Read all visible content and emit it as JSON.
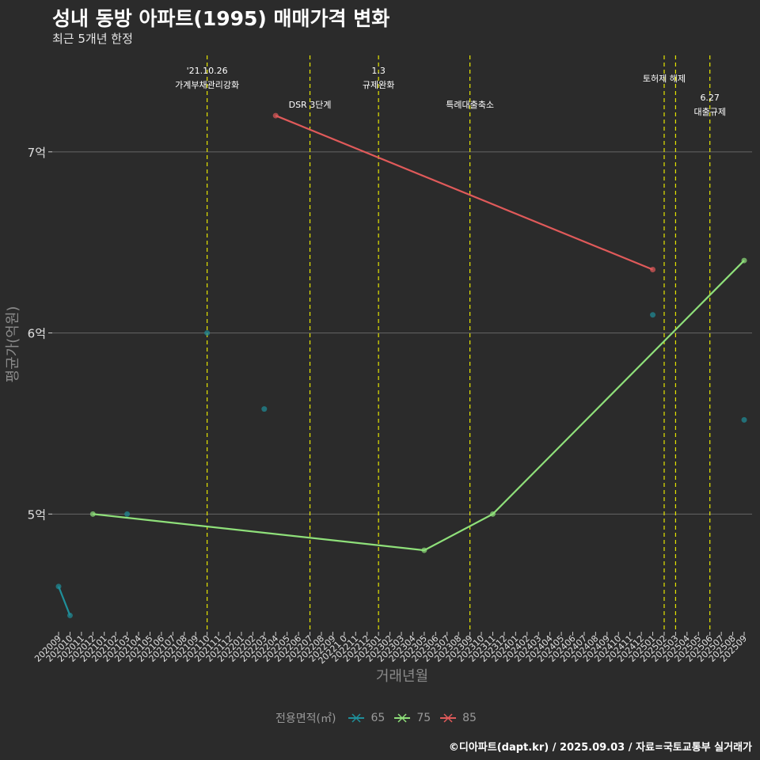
{
  "title": "성내 동방 아파트(1995) 매매가격 변화",
  "subtitle": "최근 5개년 한정",
  "caption": "©디아파트(dapt.kr) / 2025.09.03 / 자료=국토교통부 실거래가",
  "chart_data": {
    "type": "line",
    "title": "성내 동방 아파트(1995) 매매가격 변화",
    "xlabel": "거래년월",
    "ylabel": "평균가(억원)",
    "ylim": [
      4.35,
      7.55
    ],
    "yticks": [
      5,
      6,
      7
    ],
    "ytick_labels": [
      "5억",
      "6억",
      "7억"
    ],
    "categories": [
      "202009",
      "202010",
      "202011",
      "202012",
      "202101",
      "202102",
      "202103",
      "202104",
      "202105",
      "202106",
      "202107",
      "202108",
      "202109",
      "202110",
      "202111",
      "202112",
      "202201",
      "202202",
      "202203",
      "202204",
      "202205",
      "202206",
      "202207",
      "202208",
      "202209",
      "202210",
      "202211",
      "202212",
      "202301",
      "202302",
      "202303",
      "202304",
      "202305",
      "202306",
      "202307",
      "202308",
      "202309",
      "202310",
      "202311",
      "202312",
      "202401",
      "202402",
      "202403",
      "202404",
      "202405",
      "202406",
      "202407",
      "202408",
      "202409",
      "202410",
      "202411",
      "202412",
      "202501",
      "202502",
      "202503",
      "202504",
      "202505",
      "202506",
      "202507",
      "202508",
      "202509"
    ],
    "x_tick_labels": [
      "202009",
      "202010",
      "202011",
      "202012",
      "202101",
      "202102",
      "202103",
      "202104",
      "202105",
      "202106",
      "202107",
      "202108",
      "202109",
      "202110",
      "202111",
      "202112",
      "202201",
      "202202",
      "202203",
      "202204",
      "202205",
      "202206",
      "202207",
      "202208",
      "202209",
      "20221 0",
      "202211",
      "202212",
      "202301",
      "202302",
      "202303",
      "202304",
      "202305",
      "202306",
      "202307",
      "202308",
      "202309",
      "202310",
      "202311",
      "202312",
      "202401",
      "202402",
      "202403",
      "202404",
      "202405",
      "202406",
      "202407",
      "202408",
      "202409",
      "202410",
      "202411",
      "202412",
      "202501",
      "202502",
      "202503",
      "202504",
      "202505",
      "202506",
      "202507",
      "202508",
      "202509"
    ],
    "series": [
      {
        "name": "65",
        "color": "#1f8f9a",
        "line": [
          {
            "x": "202009",
            "y": 4.6
          },
          {
            "x": "202010",
            "y": 4.44
          }
        ],
        "points": [
          {
            "x": "202009",
            "y": 4.6
          },
          {
            "x": "202010",
            "y": 4.44
          },
          {
            "x": "202103",
            "y": 5.0
          },
          {
            "x": "202110",
            "y": 6.0
          },
          {
            "x": "202203",
            "y": 5.58
          },
          {
            "x": "202501",
            "y": 6.1
          },
          {
            "x": "202509",
            "y": 5.52
          }
        ]
      },
      {
        "name": "75",
        "color": "#8fe07a",
        "line": [
          {
            "x": "202012",
            "y": 5.0
          },
          {
            "x": "202305",
            "y": 4.8
          },
          {
            "x": "202311",
            "y": 5.0
          },
          {
            "x": "202509",
            "y": 6.4
          }
        ],
        "points": [
          {
            "x": "202012",
            "y": 5.0
          },
          {
            "x": "202305",
            "y": 4.8
          },
          {
            "x": "202311",
            "y": 5.0
          },
          {
            "x": "202509",
            "y": 6.4
          }
        ]
      },
      {
        "name": "85",
        "color": "#e05a5a",
        "line": [
          {
            "x": "202204",
            "y": 7.2
          },
          {
            "x": "202501",
            "y": 6.35
          }
        ],
        "points": [
          {
            "x": "202204",
            "y": 7.2
          },
          {
            "x": "202501",
            "y": 6.35
          }
        ]
      }
    ],
    "vlines": [
      {
        "x": "202110",
        "label_lines": [
          "'21.10.26",
          "가계부채관리강화"
        ],
        "label_level": "top"
      },
      {
        "x": "202207",
        "label_lines": [
          "DSR 3단계"
        ],
        "label_level": "low"
      },
      {
        "x": "202301",
        "label_lines": [
          "1.3",
          "규제완화"
        ],
        "label_level": "top"
      },
      {
        "x": "202309",
        "label_lines": [
          "특례대출축소"
        ],
        "label_level": "low"
      },
      {
        "x": "202502",
        "label_lines": [
          "토허제 해제"
        ],
        "label_level": "mid"
      },
      {
        "x": "202503",
        "label_lines": [],
        "label_level": "none"
      },
      {
        "x": "202506",
        "label_lines": [
          "6.27",
          "대출규제"
        ],
        "label_level": "low2"
      }
    ],
    "legend": {
      "title": "전용면적(㎡)",
      "items": [
        "65",
        "75",
        "85"
      ],
      "position": "bottom"
    }
  }
}
